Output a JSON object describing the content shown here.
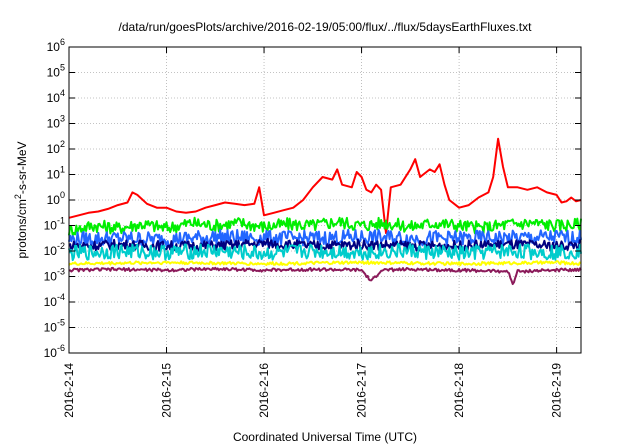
{
  "chart_data": {
    "type": "line",
    "title": "/data/run/goesPlots/archive/2016-02-19/05:00/flux/../flux/5daysEarthFluxes.txt",
    "xlabel": "Coordinated Universal Time (UTC)",
    "ylabel": {
      "pre": "protons/cm",
      "sup": "2",
      "post": "-s-sr-MeV"
    },
    "y_scale": "log",
    "ylim_exp": [
      -6,
      6
    ],
    "y_ticks": [
      {
        "base": "10",
        "exp": "-6"
      },
      {
        "base": "10",
        "exp": "-5"
      },
      {
        "base": "10",
        "exp": "-4"
      },
      {
        "base": "10",
        "exp": "-3"
      },
      {
        "base": "10",
        "exp": "-2"
      },
      {
        "base": "10",
        "exp": "-1"
      },
      {
        "base": "10",
        "exp": "0"
      },
      {
        "base": "10",
        "exp": "1"
      },
      {
        "base": "10",
        "exp": "2"
      },
      {
        "base": "10",
        "exp": "3"
      },
      {
        "base": "10",
        "exp": "4"
      },
      {
        "base": "10",
        "exp": "5"
      },
      {
        "base": "10",
        "exp": "6"
      }
    ],
    "x_ticks": [
      "2016-2-14",
      "2016-2-15",
      "2016-2-16",
      "2016-2-17",
      "2016-2-18",
      "2016-2-19"
    ],
    "xlim_days": [
      0,
      5.25
    ],
    "grid": true,
    "legend": "none",
    "series": [
      {
        "color": "#ff0000",
        "points": [
          [
            0,
            -0.7
          ],
          [
            0.1,
            -0.6
          ],
          [
            0.2,
            -0.5
          ],
          [
            0.3,
            -0.45
          ],
          [
            0.4,
            -0.35
          ],
          [
            0.5,
            -0.2
          ],
          [
            0.6,
            -0.1
          ],
          [
            0.65,
            0.3
          ],
          [
            0.7,
            0.2
          ],
          [
            0.8,
            -0.15
          ],
          [
            0.9,
            -0.3
          ],
          [
            1,
            -0.3
          ],
          [
            1.1,
            -0.45
          ],
          [
            1.2,
            -0.5
          ],
          [
            1.3,
            -0.45
          ],
          [
            1.4,
            -0.3
          ],
          [
            1.5,
            -0.2
          ],
          [
            1.6,
            -0.1
          ],
          [
            1.7,
            -0.15
          ],
          [
            1.8,
            -0.2
          ],
          [
            1.9,
            -0.15
          ],
          [
            1.95,
            0.5
          ],
          [
            2,
            -0.6
          ],
          [
            2.1,
            -0.5
          ],
          [
            2.2,
            -0.4
          ],
          [
            2.3,
            -0.3
          ],
          [
            2.4,
            0
          ],
          [
            2.5,
            0.5
          ],
          [
            2.6,
            0.9
          ],
          [
            2.7,
            0.8
          ],
          [
            2.75,
            1.2
          ],
          [
            2.8,
            0.6
          ],
          [
            2.9,
            0.5
          ],
          [
            2.95,
            1.1
          ],
          [
            3,
            0.9
          ],
          [
            3.05,
            0.4
          ],
          [
            3.1,
            0.3
          ],
          [
            3.15,
            0.6
          ],
          [
            3.2,
            0.4
          ],
          [
            3.25,
            -1.3
          ],
          [
            3.3,
            0.5
          ],
          [
            3.4,
            0.6
          ],
          [
            3.5,
            1.2
          ],
          [
            3.55,
            1.6
          ],
          [
            3.6,
            0.9
          ],
          [
            3.7,
            1.2
          ],
          [
            3.75,
            1.1
          ],
          [
            3.8,
            1.4
          ],
          [
            3.85,
            0.6
          ],
          [
            3.9,
            0
          ],
          [
            4,
            -0.3
          ],
          [
            4.1,
            -0.2
          ],
          [
            4.2,
            0.1
          ],
          [
            4.3,
            0.3
          ],
          [
            4.35,
            0.9
          ],
          [
            4.4,
            2.4
          ],
          [
            4.45,
            1.3
          ],
          [
            4.5,
            0.5
          ],
          [
            4.6,
            0.5
          ],
          [
            4.7,
            0.4
          ],
          [
            4.8,
            0.5
          ],
          [
            4.9,
            0.3
          ],
          [
            5,
            0.2
          ],
          [
            5.05,
            -0.1
          ],
          [
            5.1,
            -0.05
          ],
          [
            5.15,
            0.1
          ],
          [
            5.2,
            -0.05
          ],
          [
            5.25,
            0
          ]
        ]
      },
      {
        "color": "#00ee00",
        "points": [
          [
            0,
            -1.2
          ],
          [
            0.25,
            -1.0
          ],
          [
            0.5,
            -1.1
          ],
          [
            0.75,
            -0.95
          ],
          [
            1,
            -1.1
          ],
          [
            1.25,
            -0.9
          ],
          [
            1.5,
            -1.0
          ],
          [
            1.75,
            -0.9
          ],
          [
            2,
            -1.05
          ],
          [
            2.25,
            -0.95
          ],
          [
            2.5,
            -1.0
          ],
          [
            2.75,
            -0.85
          ],
          [
            3,
            -1.0
          ],
          [
            3.25,
            -0.9
          ],
          [
            3.5,
            -1.05
          ],
          [
            3.75,
            -0.9
          ],
          [
            4,
            -1.0
          ],
          [
            4.25,
            -1.1
          ],
          [
            4.5,
            -0.95
          ],
          [
            4.75,
            -0.9
          ],
          [
            5,
            -1.0
          ],
          [
            5.25,
            -0.95
          ]
        ],
        "wiggle": 0.25
      },
      {
        "color": "#2266ff",
        "points": [
          [
            0,
            -1.55
          ],
          [
            0.5,
            -1.5
          ],
          [
            1,
            -1.55
          ],
          [
            1.5,
            -1.45
          ],
          [
            2,
            -1.5
          ],
          [
            2.5,
            -1.5
          ],
          [
            3,
            -1.45
          ],
          [
            3.5,
            -1.5
          ],
          [
            4,
            -1.5
          ],
          [
            4.5,
            -1.5
          ],
          [
            5,
            -1.45
          ],
          [
            5.25,
            -1.5
          ]
        ],
        "wiggle": 0.3
      },
      {
        "color": "#000080",
        "points": [
          [
            0,
            -1.8
          ],
          [
            0.5,
            -1.75
          ],
          [
            1,
            -1.8
          ],
          [
            1.5,
            -1.8
          ],
          [
            2,
            -1.7
          ],
          [
            2.5,
            -1.8
          ],
          [
            3,
            -1.75
          ],
          [
            3.5,
            -1.8
          ],
          [
            4,
            -1.8
          ],
          [
            4.5,
            -1.75
          ],
          [
            5,
            -1.8
          ],
          [
            5.25,
            -1.75
          ]
        ],
        "wiggle": 0.2
      },
      {
        "color": "#00cccc",
        "points": [
          [
            0,
            -2.1
          ],
          [
            0.5,
            -2.0
          ],
          [
            1,
            -2.05
          ],
          [
            1.5,
            -2.0
          ],
          [
            2,
            -2.1
          ],
          [
            2.5,
            -2.0
          ],
          [
            3,
            -2.05
          ],
          [
            3.5,
            -2.0
          ],
          [
            4,
            -2.1
          ],
          [
            4.5,
            -2.0
          ],
          [
            5,
            -2.05
          ],
          [
            5.25,
            -2.0
          ]
        ],
        "wiggle": 0.3
      },
      {
        "color": "#ffff00",
        "points": [
          [
            0,
            -2.5
          ],
          [
            1,
            -2.45
          ],
          [
            2,
            -2.5
          ],
          [
            3,
            -2.45
          ],
          [
            4,
            -2.5
          ],
          [
            5,
            -2.45
          ],
          [
            5.25,
            -2.5
          ]
        ],
        "wiggle": 0.06
      },
      {
        "color": "#8b1a5a",
        "points": [
          [
            0,
            -2.75
          ],
          [
            0.5,
            -2.72
          ],
          [
            1,
            -2.75
          ],
          [
            1.5,
            -2.7
          ],
          [
            2,
            -2.75
          ],
          [
            2.5,
            -2.72
          ],
          [
            3,
            -2.75
          ],
          [
            3.1,
            -3.2
          ],
          [
            3.2,
            -2.75
          ],
          [
            3.5,
            -2.72
          ],
          [
            4,
            -2.75
          ],
          [
            4.5,
            -2.8
          ],
          [
            4.55,
            -3.3
          ],
          [
            4.6,
            -2.8
          ],
          [
            5,
            -2.75
          ],
          [
            5.25,
            -2.72
          ]
        ],
        "wiggle": 0.06
      }
    ]
  }
}
